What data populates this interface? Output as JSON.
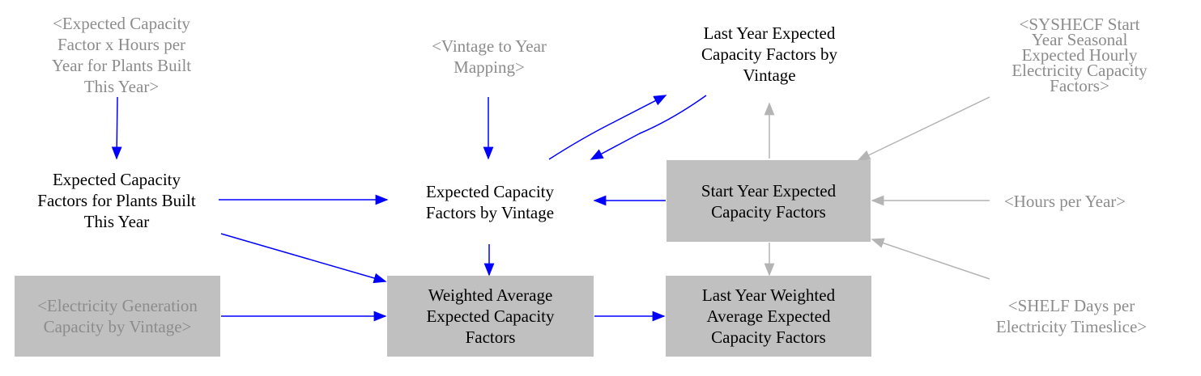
{
  "colors": {
    "causal": "#0000ff",
    "shadow": "#b4b4b4",
    "box": "#c0c0c0",
    "shadow_text": "#8c8c8c"
  },
  "nodes": {
    "cf_hours_new_plants": "<Expected Capacity\nFactor x Hours per\nYear for Plants Built\nThis Year>",
    "vintage_year_mapping": "<Vintage to Year\nMapping>",
    "last_year_cf_by_vintage": "Last Year Expected\nCapacity Factors by\nVintage",
    "syshecf_start_year": "<SYSHECF Start\nYear Seasonal\nExpected Hourly\nElectricity Capacity\nFactors>",
    "cf_new_plants": "Expected Capacity\nFactors for Plants Built\nThis Year",
    "cf_by_vintage": "Expected Capacity\nFactors by Vintage",
    "start_year_cf": "Start Year Expected\nCapacity Factors",
    "hours_per_year": "<Hours per Year>",
    "elec_gen_capacity_by_vintage": "<Electricity Generation\nCapacity by Vintage>",
    "weighted_avg_cf": "Weighted Average\nExpected Capacity\nFactors",
    "last_year_weighted_avg_cf": "Last Year Weighted\nAverage Expected\nCapacity Factors",
    "shelf_days": "<SHELF Days per\nElectricity Timeslice>"
  }
}
